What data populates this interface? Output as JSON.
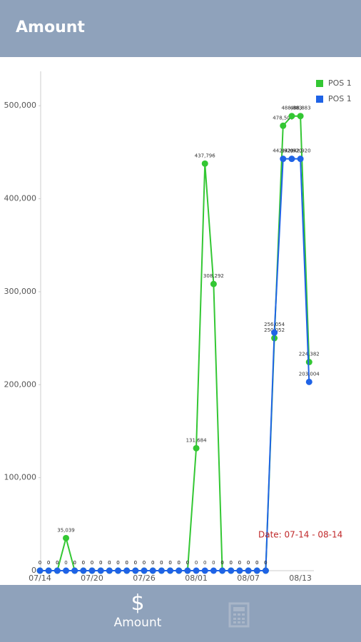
{
  "header": {
    "title": "Amount"
  },
  "chart_data": {
    "type": "line",
    "annotation": "Date: 07-14 - 08-14",
    "categories": [
      "07/14",
      null,
      null,
      null,
      null,
      null,
      "07/20",
      null,
      null,
      null,
      null,
      null,
      "07/26",
      null,
      null,
      null,
      null,
      null,
      "08/01",
      null,
      null,
      null,
      null,
      null,
      "08/07",
      null,
      null,
      null,
      null,
      null,
      "08/13",
      null
    ],
    "series": [
      {
        "name": "POS 1",
        "color": "#33c733",
        "values": [
          0,
          0,
          0,
          35039,
          0,
          0,
          0,
          0,
          0,
          0,
          0,
          0,
          0,
          0,
          0,
          0,
          0,
          0,
          131684,
          437796,
          308292,
          0,
          0,
          0,
          0,
          0,
          0,
          250052,
          478500,
          488883,
          488883,
          224382
        ],
        "value_labels": [
          "0",
          "0",
          "0",
          "35,039",
          "0",
          "0",
          "0",
          "0",
          "0",
          "0",
          "0",
          "0",
          "0",
          "0",
          "0",
          "0",
          "0",
          "0",
          "131,684",
          "437,796",
          "308,292",
          "0",
          "0",
          "0",
          "0",
          "0",
          "0",
          "250,052",
          "478,500",
          "488,883",
          "488,883",
          "224,382"
        ]
      },
      {
        "name": "POS 1",
        "color": "#1f63e6",
        "values": [
          0,
          0,
          0,
          0,
          0,
          0,
          0,
          0,
          0,
          0,
          0,
          0,
          0,
          0,
          0,
          0,
          0,
          0,
          0,
          0,
          0,
          0,
          0,
          0,
          0,
          0,
          0,
          256054,
          442920,
          442920,
          442920,
          203004
        ],
        "value_labels": [
          "0",
          "0",
          "0",
          "0",
          "0",
          "0",
          "0",
          "0",
          "0",
          "0",
          "0",
          "0",
          "0",
          "0",
          "0",
          "0",
          "0",
          "0",
          "0",
          "0",
          "0",
          "0",
          "0",
          "0",
          "0",
          "0",
          "0",
          "256,054",
          "442,920",
          "442,920",
          "442,920",
          "203,004"
        ]
      }
    ],
    "ylim": [
      0,
      537000
    ],
    "yticks": [
      0,
      {
        "value": 100000,
        "label": "100,000"
      },
      {
        "value": 200000,
        "label": "200,000"
      },
      {
        "value": 300000,
        "label": "300,000"
      },
      {
        "value": 400000,
        "label": "400,000"
      },
      {
        "value": 500000,
        "label": "500,000"
      }
    ],
    "legend": "top-right"
  },
  "nav": {
    "items": [
      {
        "icon": "$",
        "label": "Amount"
      }
    ]
  }
}
